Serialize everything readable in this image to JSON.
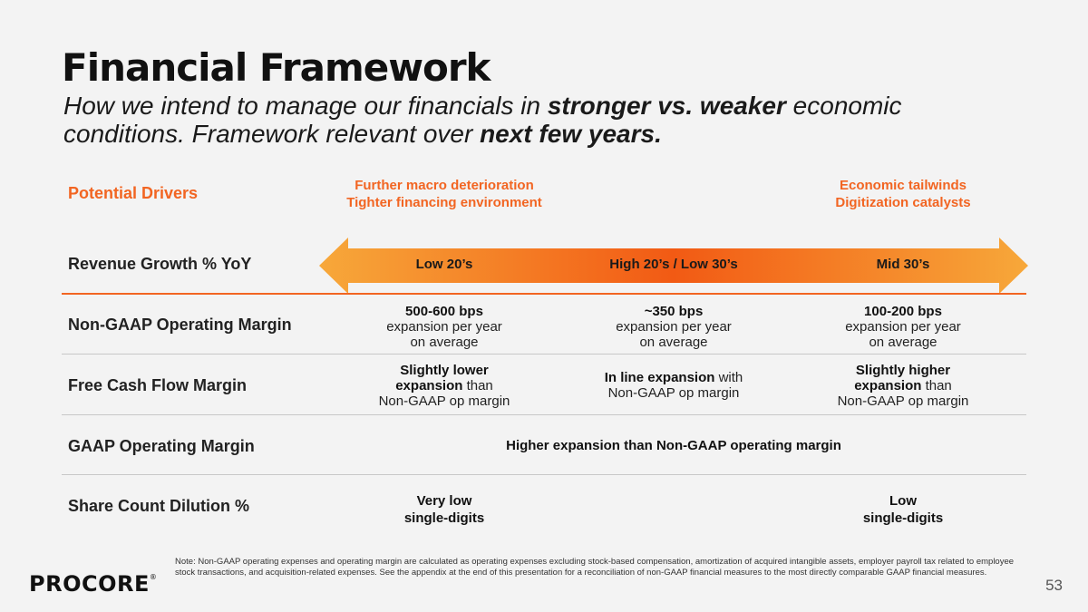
{
  "slide": {
    "title": "Financial Framework",
    "subtitle": {
      "part1": "How we intend to manage our financials in ",
      "bold1": "stronger vs. weaker",
      "part2": " economic conditions. Framework relevant over ",
      "bold2": "next few years."
    },
    "drivers": {
      "label": "Potential Drivers",
      "left_line1": "Further macro deterioration",
      "left_line2": "Tighter financing environment",
      "right_line1": "Economic tailwinds",
      "right_line2": "Digitization catalysts"
    },
    "rows": {
      "revenue": {
        "label": "Revenue Growth % YoY",
        "col1": "Low 20’s",
        "col2": "High 20’s / Low 30’s",
        "col3": "Mid 30’s"
      },
      "operating_margin": {
        "label": "Non-GAAP Operating Margin",
        "col1_bold": "500-600 bps",
        "col1_l2": "expansion per year",
        "col1_l3": "on average",
        "col2_bold": "~350 bps",
        "col2_l2": "expansion per year",
        "col2_l3": "on average",
        "col3_bold": "100-200 bps",
        "col3_l2": "expansion per year",
        "col3_l3": "on average"
      },
      "fcf": {
        "label": "Free Cash Flow Margin",
        "col1_bold1": "Slightly lower",
        "col1_bold2": "expansion",
        "col1_rest2": " than",
        "col1_l3": "Non-GAAP op margin",
        "col2_bold": "In line expansion",
        "col2_rest": " with",
        "col2_l2": "Non-GAAP op margin",
        "col3_bold1": "Slightly higher",
        "col3_bold2": "expansion",
        "col3_rest2": " than",
        "col3_l3": "Non-GAAP op margin"
      },
      "gaap": {
        "label": "GAAP Operating Margin",
        "value": "Higher expansion than Non-GAAP operating margin"
      },
      "dilution": {
        "label": "Share Count Dilution %",
        "col1_l1": "Very low",
        "col1_l2": "single-digits",
        "col3_l1": "Low",
        "col3_l2": "single-digits"
      }
    },
    "note": "Note: Non-GAAP operating expenses and operating margin are calculated as operating expenses excluding stock-based compensation, amortization of acquired intangible assets, employer payroll tax related to employee stock transactions, and acquisition-related expenses. See the appendix at the end of this presentation for a reconciliation of non-GAAP financial measures to the most directly comparable GAAP financial measures.",
    "logo": "PROCORE",
    "logo_mark": "®",
    "page_number": "53"
  },
  "colors": {
    "accent": "#f26522",
    "arrow_light": "#f7a83a",
    "arrow_dark": "#f25a14",
    "background": "#f3f3f3"
  }
}
